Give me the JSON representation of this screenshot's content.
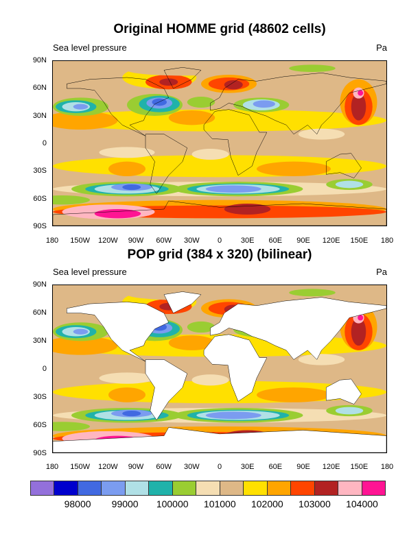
{
  "panels": [
    {
      "title": "Original HOMME grid (48602 cells)",
      "left_string": "Sea level pressure",
      "right_string": "Pa",
      "mask_land": false
    },
    {
      "title": "POP grid (384 x 320) (bilinear)",
      "left_string": "Sea level pressure",
      "right_string": "Pa",
      "mask_land": true
    }
  ],
  "lon_labels": [
    "180",
    "150W",
    "120W",
    "90W",
    "60W",
    "30W",
    "0",
    "30E",
    "60E",
    "90E",
    "120E",
    "150E",
    "180"
  ],
  "lat_labels": [
    "90N",
    "60N",
    "30N",
    "0",
    "30S",
    "60S",
    "90S"
  ],
  "colorbar": {
    "colors": [
      "#9370db",
      "#0000cd",
      "#4169e1",
      "#7b9cf0",
      "#b0e0e6",
      "#20b2aa",
      "#9acd32",
      "#f5deb3",
      "#deb887",
      "#ffe000",
      "#ffa500",
      "#ff4500",
      "#b22222",
      "#ffb6c1",
      "#ff1493"
    ],
    "labels": [
      "98000",
      "99000",
      "100000",
      "101000",
      "102000",
      "103000",
      "104000"
    ]
  }
}
